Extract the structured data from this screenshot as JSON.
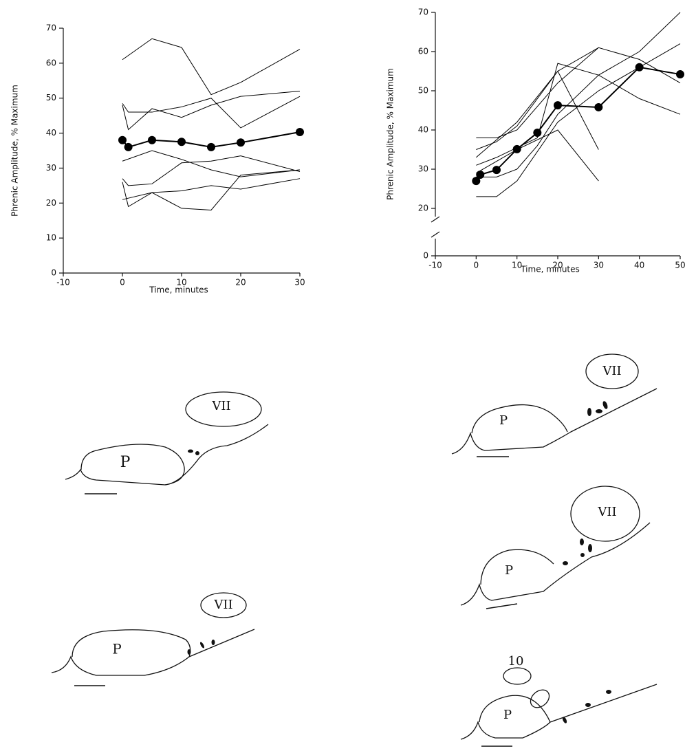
{
  "chart_data": [
    {
      "type": "line",
      "ylabel": "Phrenic Amplitude, % Maximum",
      "xlabel": "Time, minutes",
      "xlim": [
        -10,
        30
      ],
      "ylim": [
        0,
        70
      ],
      "xticks": [
        -10,
        0,
        10,
        20,
        30
      ],
      "yticks": [
        0,
        10,
        20,
        30,
        40,
        50,
        60,
        70
      ],
      "series": [
        {
          "color": "#000000",
          "x": [
            0,
            5,
            10,
            15,
            20,
            30
          ],
          "values": [
            61,
            67,
            64.5,
            51,
            54.5,
            64
          ]
        },
        {
          "color": "#000000",
          "x": [
            0,
            1,
            5,
            10,
            15,
            20,
            30
          ],
          "values": [
            48.5,
            46,
            46,
            47.5,
            50,
            41.5,
            50.5
          ]
        },
        {
          "color": "#000000",
          "x": [
            0,
            1,
            5,
            10,
            15,
            20,
            30
          ],
          "values": [
            48,
            41,
            47,
            44.5,
            48,
            50.5,
            52
          ]
        },
        {
          "color": "#000000",
          "x": [
            0,
            5,
            10,
            15,
            20,
            30
          ],
          "values": [
            32,
            35,
            32.5,
            29.5,
            27.5,
            29.5
          ]
        },
        {
          "color": "#000000",
          "x": [
            0,
            1,
            5,
            10,
            15,
            20,
            30
          ],
          "values": [
            27,
            25,
            25.5,
            31.5,
            32,
            33.5,
            29
          ]
        },
        {
          "color": "#000000",
          "x": [
            0,
            1,
            5,
            10,
            15,
            20,
            30
          ],
          "values": [
            26,
            19,
            23,
            18.5,
            18,
            28,
            29.5
          ]
        },
        {
          "color": "#000000",
          "x": [
            0,
            5,
            10,
            15,
            20,
            30
          ],
          "values": [
            21,
            23,
            23.5,
            25,
            24,
            27
          ]
        },
        {
          "color": "#000000",
          "x": [
            0,
            1,
            5,
            10,
            15,
            20,
            30
          ],
          "values": [
            38,
            36,
            38,
            37.5,
            36,
            37.3,
            40.3
          ],
          "markers": true
        }
      ]
    },
    {
      "type": "line",
      "ylabel": "Phrenic Amplitude, % Maximum",
      "xlabel": "Time, minutes",
      "xlim": [
        -10,
        50
      ],
      "ylim": [
        0,
        70
      ],
      "axis_break": [
        0,
        20
      ],
      "xticks": [
        -10,
        0,
        10,
        20,
        30,
        40,
        50
      ],
      "yticks": [
        0,
        20,
        30,
        40,
        50,
        60,
        70
      ],
      "series": [
        {
          "color": "#000000",
          "x": [
            0,
            5,
            10,
            20,
            30,
            40,
            50
          ],
          "values": [
            23,
            23,
            27,
            42,
            50,
            56,
            62
          ]
        },
        {
          "color": "#000000",
          "x": [
            0,
            5,
            10,
            15,
            20,
            30,
            40,
            50
          ],
          "values": [
            28,
            28,
            30,
            36,
            44,
            54,
            60,
            70
          ]
        },
        {
          "color": "#000000",
          "x": [
            0,
            5,
            10,
            15,
            20,
            30
          ],
          "values": [
            35,
            37,
            41,
            48,
            55,
            61
          ]
        },
        {
          "color": "#000000",
          "x": [
            0,
            5,
            10,
            20,
            30,
            40,
            50
          ],
          "values": [
            38,
            38,
            40,
            52,
            61,
            58,
            52
          ]
        },
        {
          "color": "#000000",
          "x": [
            0,
            10,
            20,
            30
          ],
          "values": [
            29,
            35,
            40,
            27
          ]
        },
        {
          "color": "#000000",
          "x": [
            0,
            10,
            20,
            30
          ],
          "values": [
            33,
            42,
            55,
            35
          ]
        },
        {
          "color": "#000000",
          "x": [
            0,
            5,
            15,
            20,
            30,
            40,
            50
          ],
          "values": [
            31,
            33,
            38,
            57,
            54,
            48,
            44
          ]
        },
        {
          "color": "#000000",
          "x": [
            0,
            1,
            5,
            10,
            15,
            20,
            30,
            40,
            50
          ],
          "values": [
            27,
            28.6,
            29.8,
            35.1,
            39.3,
            46.3,
            45.8,
            56,
            54.2
          ],
          "markers": true
        }
      ]
    }
  ],
  "diagrams": [
    {
      "labels": [
        "VII",
        "P"
      ]
    },
    {
      "labels": [
        "VII",
        "P"
      ]
    },
    {
      "labels": [
        "VII",
        "P"
      ]
    },
    {
      "labels": [
        "VII",
        "P"
      ]
    },
    {
      "labels": [
        "10",
        "P"
      ]
    }
  ]
}
